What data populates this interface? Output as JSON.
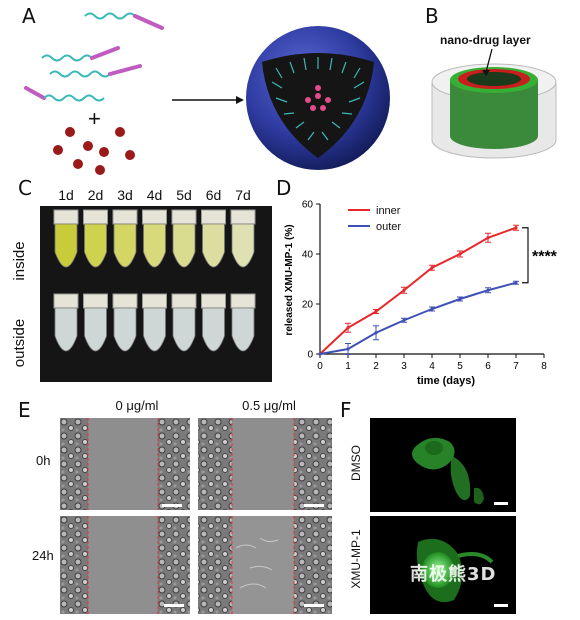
{
  "panels": {
    "A": {
      "letter": "A",
      "plus": "+"
    },
    "B": {
      "letter": "B",
      "callout": "nano-drug layer"
    },
    "C": {
      "letter": "C",
      "days": [
        "1d",
        "2d",
        "3d",
        "4d",
        "5d",
        "6d",
        "7d"
      ],
      "row_labels": [
        "inside",
        "outside"
      ]
    },
    "D": {
      "letter": "D"
    },
    "E": {
      "letter": "E",
      "col_labels": [
        "0 μg/ml",
        "0.5 μg/ml"
      ],
      "row_labels": [
        "0h",
        "24h"
      ]
    },
    "F": {
      "letter": "F",
      "row_labels": [
        "DMSO",
        "XMU-MP-1"
      ]
    }
  },
  "colors": {
    "inner": "#e8262b",
    "outer": "#3f51b5",
    "sphere": "#2d3a9e",
    "particle": "#9a1a1a"
  },
  "watermark": "南极熊3D",
  "chart_data": {
    "type": "line",
    "xlabel": "time (days)",
    "ylabel": "released XMU-MP-1 (%)",
    "xlim": [
      0,
      8
    ],
    "ylim": [
      0,
      60
    ],
    "xticks": [
      "0",
      "1",
      "2",
      "3",
      "4",
      "5",
      "6",
      "7",
      "8"
    ],
    "yticks": [
      "0",
      "20",
      "40",
      "60"
    ],
    "x": [
      0,
      1,
      2,
      3,
      4,
      5,
      6,
      7
    ],
    "series": [
      {
        "name": "inner",
        "values": [
          0,
          10.5,
          17,
          25.5,
          34.5,
          40,
          46.5,
          50.5
        ],
        "errors": [
          0,
          1.8,
          0.8,
          1.2,
          1,
          1.2,
          1.8,
          1
        ]
      },
      {
        "name": "outer",
        "values": [
          0,
          2,
          8.5,
          13.5,
          18,
          22,
          25.5,
          28.5
        ],
        "errors": [
          0,
          2.2,
          2.8,
          0.8,
          0.8,
          0.8,
          1,
          0.6
        ]
      }
    ],
    "annotation": "****",
    "legend_position": "top-left"
  }
}
